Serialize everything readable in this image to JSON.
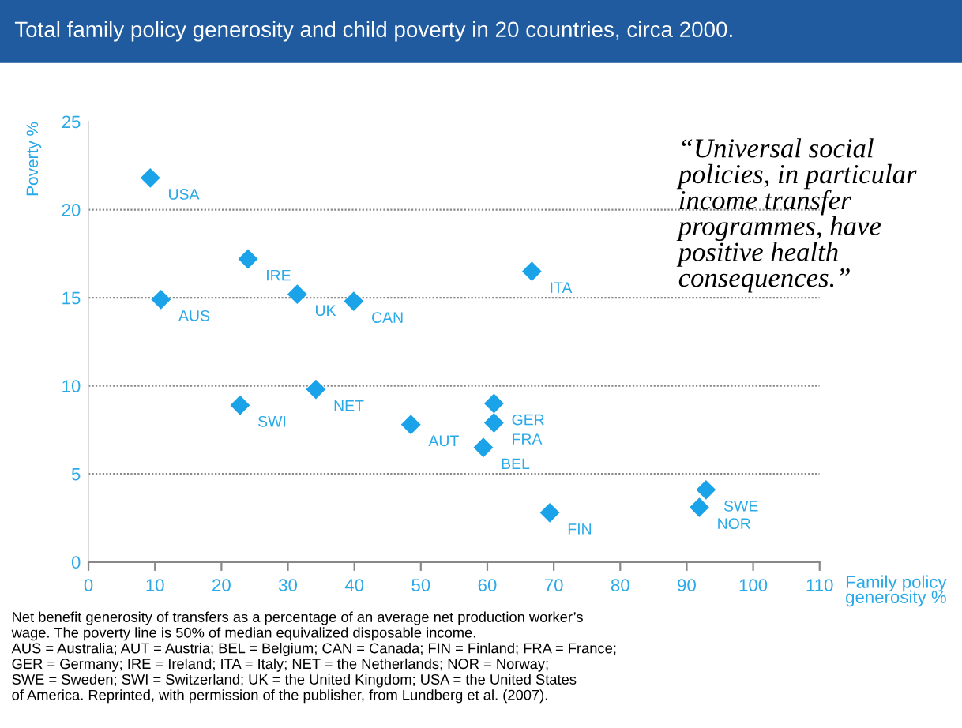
{
  "chart_data": {
    "type": "scatter",
    "title": "Total family policy generosity and child poverty in 20 countries, circa 2000.",
    "xlabel": "Family policy\ngenerosity %",
    "ylabel": "Poverty %",
    "x": [
      9.3,
      10.9,
      24.0,
      31.4,
      39.9,
      22.8,
      34.2,
      48.5,
      66.7,
      61.0,
      61.0,
      59.4,
      69.4,
      92.9,
      91.9
    ],
    "series": [
      {
        "color": "#1aa3e8",
        "values": [
          21.8,
          14.9,
          17.2,
          15.2,
          14.8,
          8.9,
          9.8,
          7.8,
          16.5,
          9.0,
          7.9,
          6.5,
          2.8,
          4.1,
          3.1
        ]
      }
    ],
    "marker": "diamond",
    "grid": "y",
    "legend": false,
    "xlim": [
      0,
      110
    ],
    "xticks": [
      0,
      10,
      20,
      30,
      40,
      50,
      60,
      70,
      80,
      90,
      100,
      110
    ],
    "ylim": [
      0,
      25
    ],
    "yticks": [
      0,
      5,
      10,
      15,
      20,
      25
    ],
    "annotations": [
      {
        "text": "USA",
        "x": 9.3,
        "y": 21.8
      },
      {
        "text": "AUS",
        "x": 10.9,
        "y": 14.9
      },
      {
        "text": "IRE",
        "x": 24.0,
        "y": 17.2
      },
      {
        "text": "UK",
        "x": 31.4,
        "y": 15.2
      },
      {
        "text": "CAN",
        "x": 39.9,
        "y": 14.8
      },
      {
        "text": "SWI",
        "x": 22.8,
        "y": 8.9
      },
      {
        "text": "NET",
        "x": 34.2,
        "y": 9.8
      },
      {
        "text": "AUT",
        "x": 48.5,
        "y": 7.8
      },
      {
        "text": "ITA",
        "x": 66.7,
        "y": 16.5
      },
      {
        "text": "GER",
        "x": 61.0,
        "y": 9.0
      },
      {
        "text": "FRA",
        "x": 61.0,
        "y": 7.9
      },
      {
        "text": "BEL",
        "x": 59.4,
        "y": 6.5
      },
      {
        "text": "FIN",
        "x": 69.4,
        "y": 2.8
      },
      {
        "text": "SWE",
        "x": 92.9,
        "y": 4.1
      },
      {
        "text": "NOR",
        "x": 91.9,
        "y": 3.1
      },
      "“Universal social\npolicies, in particular\nincome transfer\nprogrammes, have\npositive health\nconsequences.”",
      "Net benefit generosity of transfers as a percentage of an average net production worker’s\nwage. The poverty line is 50% of median equivalized disposable income.\nAUS = Australia; AUT = Austria; BEL = Belgium; CAN = Canada; FIN = Finland; FRA = France;\nGER = Germany; IRE = Ireland; ITA = Italy; NET = the Netherlands; NOR = Norway;\nSWE = Sweden; SWI = Switzerland; UK = the United Kingdom; USA = the United States\nof America. Reprinted, with permission of the publisher, from Lundberg et al. (2007)."
    ]
  }
}
